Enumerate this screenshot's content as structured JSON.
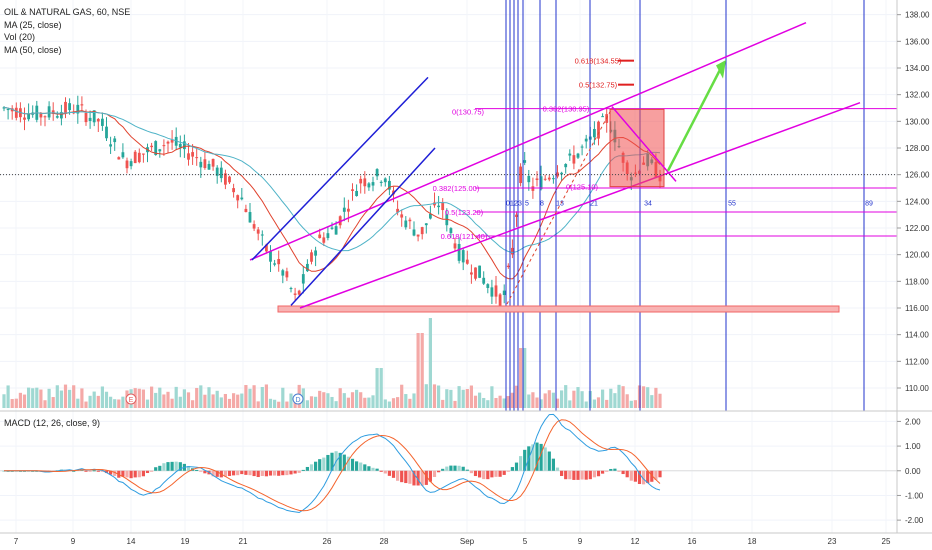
{
  "header": {
    "symbol_line": "OIL & NATURAL GAS, 60, NSE",
    "indicators": [
      "MA (25, close)",
      "Vol (20)",
      "MA (50, close)"
    ]
  },
  "macd_legend": "MACD (12, 26, close, 9)",
  "price_axis": {
    "labels": [
      "138.00",
      "136.00",
      "134.00",
      "132.00",
      "130.00",
      "128.00",
      "126.00",
      "124.00",
      "122.00",
      "120.00",
      "118.00",
      "116.00",
      "114.00",
      "112.00",
      "110.00"
    ],
    "range": [
      108.5,
      138.8
    ]
  },
  "macd_axis": {
    "labels": [
      "2.00",
      "1.00",
      "0.00",
      "-1.00",
      "-2.00"
    ],
    "range": [
      -2.4,
      2.3
    ]
  },
  "time_axis": {
    "labels": [
      "7",
      "9",
      "14",
      "19",
      "21",
      "26",
      "28",
      "Sep",
      "5",
      "9",
      "12",
      "16",
      "18",
      "23",
      "25"
    ]
  },
  "fib_labels": {
    "levels": [
      "0.618(134.55)",
      "0.5(132.75)",
      "0.382(130.95)",
      "0(130.75)",
      "0.382(125.00)",
      "0(125.10)",
      "0.5(123.20)",
      "0.618(121.40)"
    ],
    "time_counts": [
      "0",
      "1",
      "2",
      "3",
      "5",
      "8",
      "13",
      "21",
      "34",
      "55",
      "89"
    ]
  },
  "markers": {
    "earnings": "E",
    "dividend": "D"
  },
  "colors": {
    "up": "#26a69a",
    "down": "#ef5350",
    "channel": "#e100e1",
    "blue_channel": "#1f1fd6",
    "fib_time": "#2233cc",
    "ma25": "#e0422d",
    "ma50": "#4fb3c7",
    "macd": "#2f9de0",
    "signal": "#f4642d",
    "target_arrow": "#66dd44",
    "support_band": "#f06666"
  },
  "chart_data": {
    "type": "candlestick",
    "price_levels": {
      "support": 116.0,
      "fib_high": 130.95,
      "last": 126.0
    },
    "series": [
      {
        "name": "MA (25, close)"
      },
      {
        "name": "MA (50, close)"
      },
      {
        "name": "MACD (12, 26, close, 9)"
      }
    ]
  }
}
